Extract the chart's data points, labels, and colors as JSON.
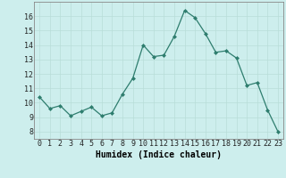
{
  "x": [
    0,
    1,
    2,
    3,
    4,
    5,
    6,
    7,
    8,
    9,
    10,
    11,
    12,
    13,
    14,
    15,
    16,
    17,
    18,
    19,
    20,
    21,
    22,
    23
  ],
  "y": [
    10.4,
    9.6,
    9.8,
    9.1,
    9.4,
    9.7,
    9.1,
    9.3,
    10.6,
    11.7,
    14.0,
    13.2,
    13.3,
    14.6,
    16.4,
    15.9,
    14.8,
    13.5,
    13.6,
    13.1,
    11.2,
    11.4,
    9.5,
    8.0
  ],
  "line_color": "#2e7d6e",
  "marker": "D",
  "marker_size": 2,
  "bg_color": "#cdeeed",
  "grid_color": "#b8ddd8",
  "xlabel": "Humidex (Indice chaleur)",
  "ylim": [
    7.5,
    17.0
  ],
  "xlim": [
    -0.5,
    23.5
  ],
  "yticks": [
    8,
    9,
    10,
    11,
    12,
    13,
    14,
    15,
    16
  ],
  "xticks": [
    0,
    1,
    2,
    3,
    4,
    5,
    6,
    7,
    8,
    9,
    10,
    11,
    12,
    13,
    14,
    15,
    16,
    17,
    18,
    19,
    20,
    21,
    22,
    23
  ],
  "tick_fontsize": 6,
  "xlabel_fontsize": 7
}
